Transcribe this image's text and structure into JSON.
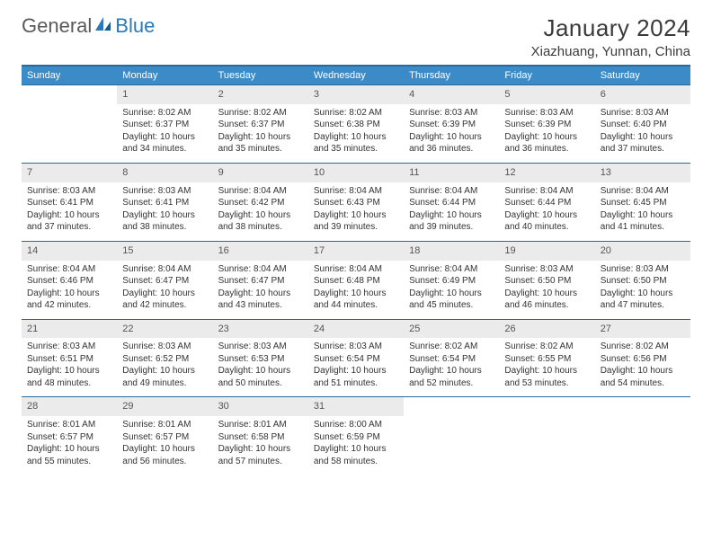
{
  "logo": {
    "text1": "General",
    "text2": "Blue"
  },
  "title": "January 2024",
  "location": "Xiazhuang, Yunnan, China",
  "weekdays": [
    "Sunday",
    "Monday",
    "Tuesday",
    "Wednesday",
    "Thursday",
    "Friday",
    "Saturday"
  ],
  "colors": {
    "header_blue": "#3b8bc8",
    "border_blue": "#2a6a9a",
    "daynum_bg": "#ebebeb",
    "logo_gray": "#5a5a5a",
    "logo_blue": "#2a7ab8",
    "text": "#333333"
  },
  "typography": {
    "title_fontsize": 26,
    "location_fontsize": 15,
    "weekday_fontsize": 11,
    "daynum_fontsize": 11,
    "body_fontsize": 10
  },
  "weeks": [
    [
      null,
      {
        "n": "1",
        "sr": "Sunrise: 8:02 AM",
        "ss": "Sunset: 6:37 PM",
        "dl": "Daylight: 10 hours and 34 minutes."
      },
      {
        "n": "2",
        "sr": "Sunrise: 8:02 AM",
        "ss": "Sunset: 6:37 PM",
        "dl": "Daylight: 10 hours and 35 minutes."
      },
      {
        "n": "3",
        "sr": "Sunrise: 8:02 AM",
        "ss": "Sunset: 6:38 PM",
        "dl": "Daylight: 10 hours and 35 minutes."
      },
      {
        "n": "4",
        "sr": "Sunrise: 8:03 AM",
        "ss": "Sunset: 6:39 PM",
        "dl": "Daylight: 10 hours and 36 minutes."
      },
      {
        "n": "5",
        "sr": "Sunrise: 8:03 AM",
        "ss": "Sunset: 6:39 PM",
        "dl": "Daylight: 10 hours and 36 minutes."
      },
      {
        "n": "6",
        "sr": "Sunrise: 8:03 AM",
        "ss": "Sunset: 6:40 PM",
        "dl": "Daylight: 10 hours and 37 minutes."
      }
    ],
    [
      {
        "n": "7",
        "sr": "Sunrise: 8:03 AM",
        "ss": "Sunset: 6:41 PM",
        "dl": "Daylight: 10 hours and 37 minutes."
      },
      {
        "n": "8",
        "sr": "Sunrise: 8:03 AM",
        "ss": "Sunset: 6:41 PM",
        "dl": "Daylight: 10 hours and 38 minutes."
      },
      {
        "n": "9",
        "sr": "Sunrise: 8:04 AM",
        "ss": "Sunset: 6:42 PM",
        "dl": "Daylight: 10 hours and 38 minutes."
      },
      {
        "n": "10",
        "sr": "Sunrise: 8:04 AM",
        "ss": "Sunset: 6:43 PM",
        "dl": "Daylight: 10 hours and 39 minutes."
      },
      {
        "n": "11",
        "sr": "Sunrise: 8:04 AM",
        "ss": "Sunset: 6:44 PM",
        "dl": "Daylight: 10 hours and 39 minutes."
      },
      {
        "n": "12",
        "sr": "Sunrise: 8:04 AM",
        "ss": "Sunset: 6:44 PM",
        "dl": "Daylight: 10 hours and 40 minutes."
      },
      {
        "n": "13",
        "sr": "Sunrise: 8:04 AM",
        "ss": "Sunset: 6:45 PM",
        "dl": "Daylight: 10 hours and 41 minutes."
      }
    ],
    [
      {
        "n": "14",
        "sr": "Sunrise: 8:04 AM",
        "ss": "Sunset: 6:46 PM",
        "dl": "Daylight: 10 hours and 42 minutes."
      },
      {
        "n": "15",
        "sr": "Sunrise: 8:04 AM",
        "ss": "Sunset: 6:47 PM",
        "dl": "Daylight: 10 hours and 42 minutes."
      },
      {
        "n": "16",
        "sr": "Sunrise: 8:04 AM",
        "ss": "Sunset: 6:47 PM",
        "dl": "Daylight: 10 hours and 43 minutes."
      },
      {
        "n": "17",
        "sr": "Sunrise: 8:04 AM",
        "ss": "Sunset: 6:48 PM",
        "dl": "Daylight: 10 hours and 44 minutes."
      },
      {
        "n": "18",
        "sr": "Sunrise: 8:04 AM",
        "ss": "Sunset: 6:49 PM",
        "dl": "Daylight: 10 hours and 45 minutes."
      },
      {
        "n": "19",
        "sr": "Sunrise: 8:03 AM",
        "ss": "Sunset: 6:50 PM",
        "dl": "Daylight: 10 hours and 46 minutes."
      },
      {
        "n": "20",
        "sr": "Sunrise: 8:03 AM",
        "ss": "Sunset: 6:50 PM",
        "dl": "Daylight: 10 hours and 47 minutes."
      }
    ],
    [
      {
        "n": "21",
        "sr": "Sunrise: 8:03 AM",
        "ss": "Sunset: 6:51 PM",
        "dl": "Daylight: 10 hours and 48 minutes."
      },
      {
        "n": "22",
        "sr": "Sunrise: 8:03 AM",
        "ss": "Sunset: 6:52 PM",
        "dl": "Daylight: 10 hours and 49 minutes."
      },
      {
        "n": "23",
        "sr": "Sunrise: 8:03 AM",
        "ss": "Sunset: 6:53 PM",
        "dl": "Daylight: 10 hours and 50 minutes."
      },
      {
        "n": "24",
        "sr": "Sunrise: 8:03 AM",
        "ss": "Sunset: 6:54 PM",
        "dl": "Daylight: 10 hours and 51 minutes."
      },
      {
        "n": "25",
        "sr": "Sunrise: 8:02 AM",
        "ss": "Sunset: 6:54 PM",
        "dl": "Daylight: 10 hours and 52 minutes."
      },
      {
        "n": "26",
        "sr": "Sunrise: 8:02 AM",
        "ss": "Sunset: 6:55 PM",
        "dl": "Daylight: 10 hours and 53 minutes."
      },
      {
        "n": "27",
        "sr": "Sunrise: 8:02 AM",
        "ss": "Sunset: 6:56 PM",
        "dl": "Daylight: 10 hours and 54 minutes."
      }
    ],
    [
      {
        "n": "28",
        "sr": "Sunrise: 8:01 AM",
        "ss": "Sunset: 6:57 PM",
        "dl": "Daylight: 10 hours and 55 minutes."
      },
      {
        "n": "29",
        "sr": "Sunrise: 8:01 AM",
        "ss": "Sunset: 6:57 PM",
        "dl": "Daylight: 10 hours and 56 minutes."
      },
      {
        "n": "30",
        "sr": "Sunrise: 8:01 AM",
        "ss": "Sunset: 6:58 PM",
        "dl": "Daylight: 10 hours and 57 minutes."
      },
      {
        "n": "31",
        "sr": "Sunrise: 8:00 AM",
        "ss": "Sunset: 6:59 PM",
        "dl": "Daylight: 10 hours and 58 minutes."
      },
      null,
      null,
      null
    ]
  ]
}
